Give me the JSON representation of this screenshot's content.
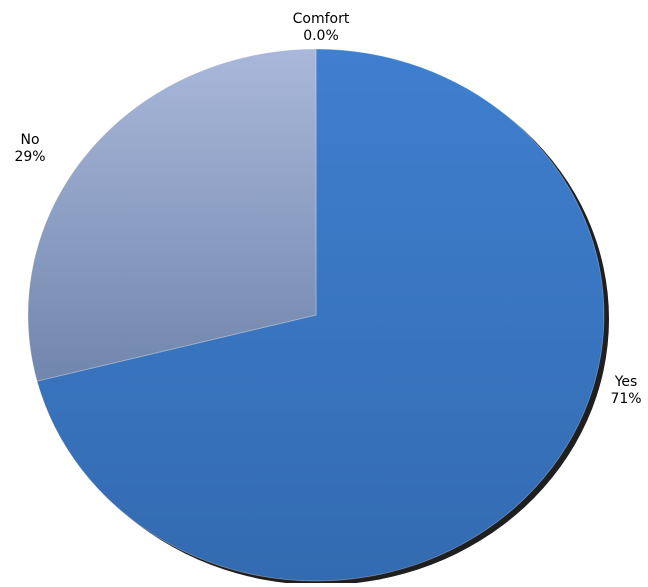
{
  "chart_data": {
    "type": "pie",
    "title": "",
    "slices": [
      {
        "label": "Yes",
        "value": 71,
        "value_label": "71%",
        "color": "#3a78c6"
      },
      {
        "label": "No",
        "value": 29,
        "value_label": "29%",
        "color": "#8b9fc8"
      },
      {
        "label": "Comfort",
        "value": 0.0,
        "value_label": "0.0%",
        "color": "#6f8f3f"
      }
    ],
    "start_angle_deg": 0,
    "direction": "clockwise",
    "legend": "none"
  }
}
